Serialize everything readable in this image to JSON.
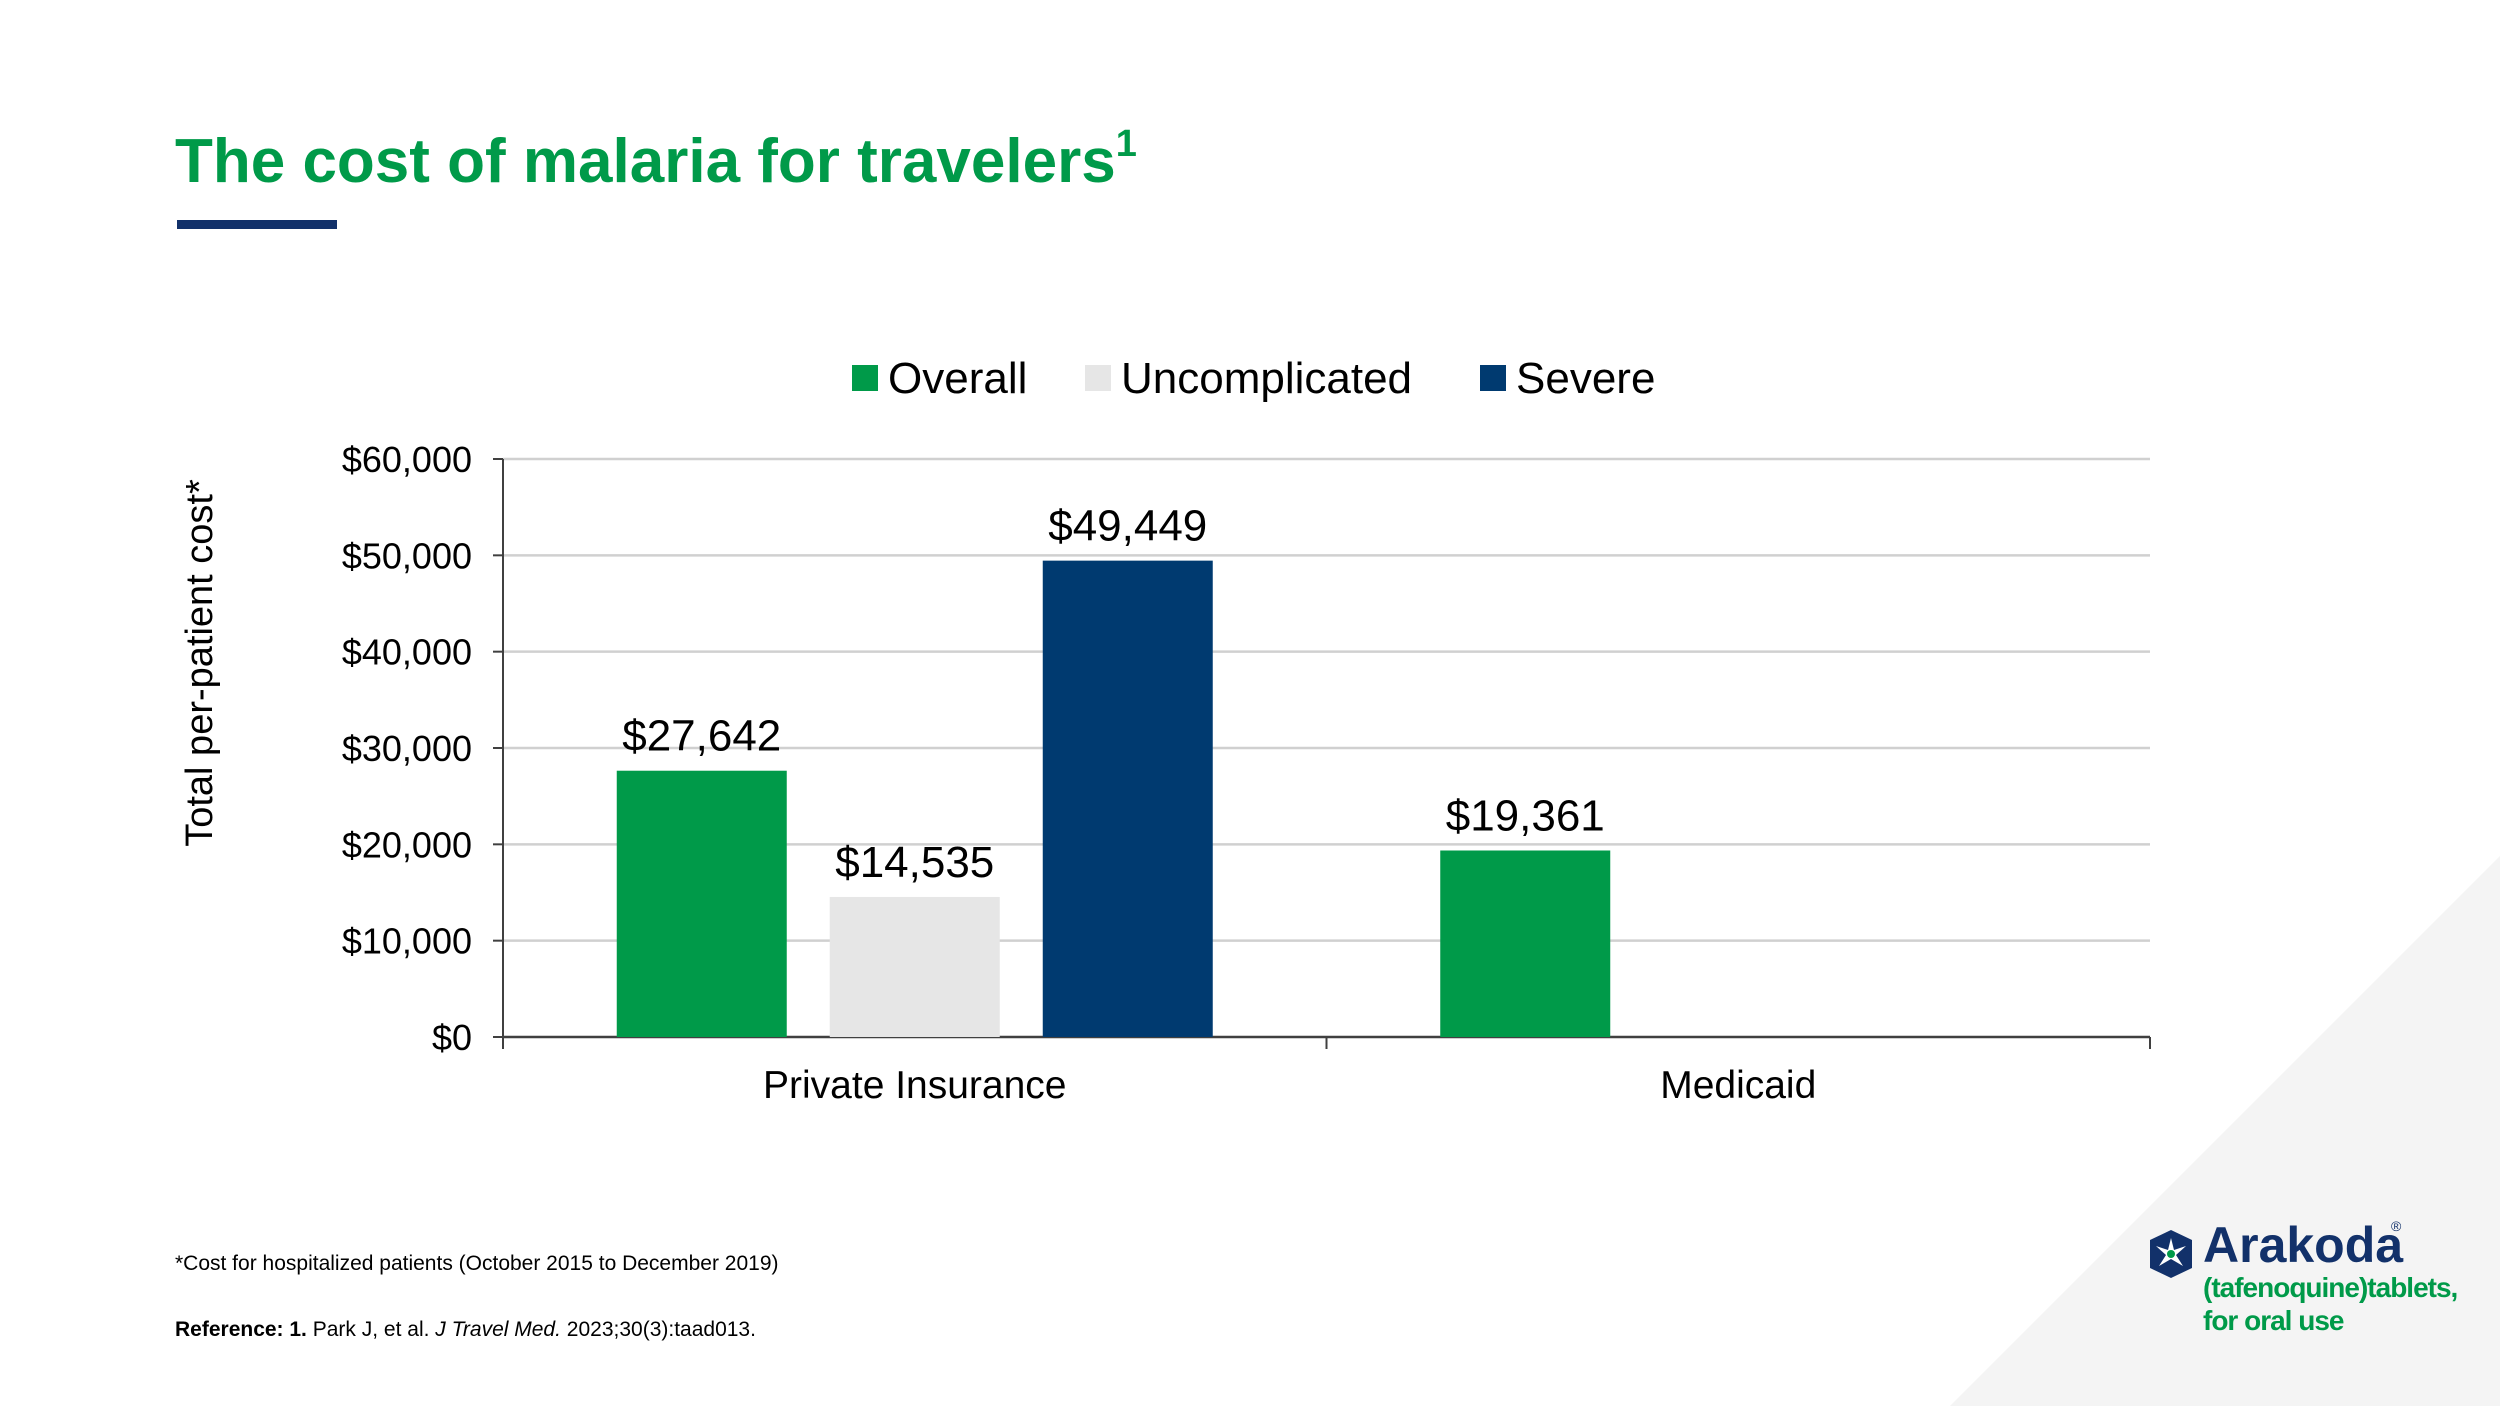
{
  "slide": {
    "title": "The cost of malaria for travelers",
    "title_sup": "1",
    "footnote": "*Cost for hospitalized patients (October 2015 to December 2019)",
    "reference_label": "Reference: 1.",
    "reference_text_1": " Park J, et al. ",
    "reference_journal": "J Travel Med.",
    "reference_text_2": " 2023;30(3):taad013."
  },
  "logo": {
    "name": "Arakoda",
    "reg": "®",
    "line1": "(tafenoquine)tablets,",
    "line2": "for oral use"
  },
  "colors": {
    "title_green": "#009a49",
    "navy": "#12316a",
    "overall": "#009a49",
    "uncomplicated": "#e6e6e6",
    "severe": "#003a70"
  },
  "chart_data": {
    "type": "bar",
    "categories": [
      "Private Insurance",
      "Medicaid"
    ],
    "series": [
      {
        "name": "Overall",
        "color": "#009a49",
        "values": [
          27642,
          19361
        ],
        "labels": [
          "$27,642",
          "$19,361"
        ]
      },
      {
        "name": "Uncomplicated",
        "color": "#e6e6e6",
        "values": [
          14535,
          null
        ],
        "labels": [
          "$14,535",
          ""
        ]
      },
      {
        "name": "Severe",
        "color": "#003a70",
        "values": [
          49449,
          null
        ],
        "labels": [
          "$49,449",
          ""
        ]
      }
    ],
    "ylabel": "Total per-patient cost*",
    "xlabel": "",
    "ylim": [
      0,
      60000
    ],
    "yticks": [
      0,
      10000,
      20000,
      30000,
      40000,
      50000,
      60000
    ],
    "ytick_labels": [
      "$0",
      "$10,000",
      "$20,000",
      "$30,000",
      "$40,000",
      "$50,000",
      "$60,000"
    ],
    "grid": true,
    "legend": "top-center"
  }
}
